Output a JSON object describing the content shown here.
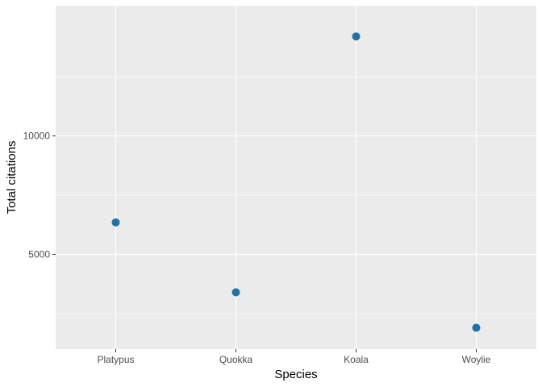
{
  "chart_data": {
    "type": "scatter",
    "title": "",
    "xlabel": "Species",
    "ylabel": "Total citations",
    "categories": [
      "Platypus",
      "Quokka",
      "Koala",
      "Woylie"
    ],
    "values": [
      6350,
      3400,
      14200,
      1900
    ],
    "ylim": [
      1000,
      15500
    ],
    "yticks": [
      5000,
      10000
    ],
    "ytick_labels": [
      "5000",
      "10000"
    ],
    "grid": true,
    "legend": "none",
    "colors": {
      "point": "#2171a8",
      "panel": "#ebebeb",
      "grid_major": "#ffffff",
      "tick_text": "#4d4d4d"
    }
  }
}
